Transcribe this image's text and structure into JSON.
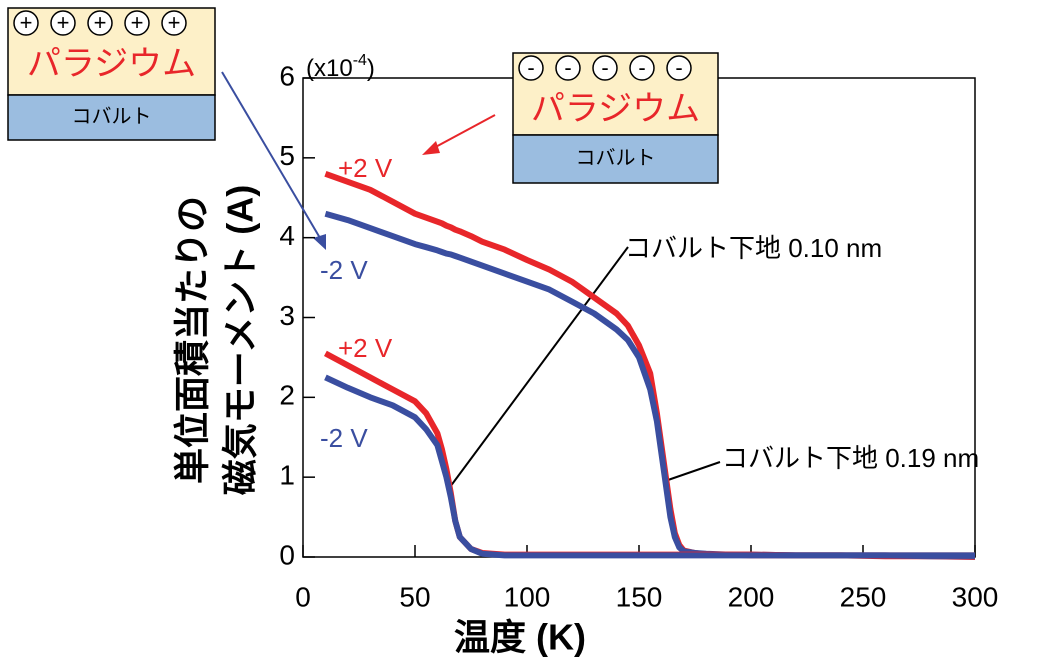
{
  "chart_data": {
    "type": "line",
    "xlabel": "温度 (K)",
    "ylabel": [
      "単位面積当たりの",
      "磁気モーメント (A)"
    ],
    "y_multiplier": {
      "base": "(x10",
      "exponent": "-4",
      "close": ")"
    },
    "xlim": [
      0,
      300
    ],
    "xticks": [
      0,
      50,
      100,
      150,
      200,
      250,
      300
    ],
    "ylim": [
      0,
      6
    ],
    "yticks": [
      0,
      1,
      2,
      3,
      4,
      5,
      6
    ],
    "x": [
      10,
      20,
      30,
      40,
      50,
      55,
      60,
      62,
      64,
      66,
      68,
      70,
      75,
      80,
      90,
      100,
      110,
      120,
      130,
      140,
      145,
      150,
      155,
      158,
      160,
      162,
      164,
      166,
      168,
      170,
      175,
      180,
      190,
      200,
      220,
      240,
      260,
      280,
      300
    ],
    "series": [
      {
        "name": "+2 V",
        "color": "#e8262a",
        "values": [
          4.8,
          4.7,
          4.6,
          4.45,
          4.3,
          4.25,
          4.2,
          4.18,
          4.15,
          4.13,
          4.1,
          4.08,
          4.02,
          3.95,
          3.85,
          3.72,
          3.6,
          3.45,
          3.25,
          3.05,
          2.9,
          2.65,
          2.3,
          1.8,
          1.4,
          1.0,
          0.6,
          0.3,
          0.15,
          0.08,
          0.05,
          0.03,
          0.03,
          0.02,
          0.02,
          0.02,
          0.01,
          0.01,
          0.0
        ]
      },
      {
        "name": "-2 V",
        "color": "#3a4ea0",
        "values": [
          4.3,
          4.22,
          4.12,
          4.02,
          3.92,
          3.88,
          3.84,
          3.82,
          3.8,
          3.79,
          3.77,
          3.75,
          3.7,
          3.65,
          3.55,
          3.45,
          3.35,
          3.2,
          3.05,
          2.85,
          2.72,
          2.5,
          2.1,
          1.7,
          1.3,
          0.9,
          0.5,
          0.25,
          0.12,
          0.07,
          0.05,
          0.04,
          0.03,
          0.03,
          0.02,
          0.02,
          0.02,
          0.01,
          0.01
        ]
      },
      {
        "name": "+2 V",
        "color": "#e8262a",
        "values": [
          2.55,
          2.4,
          2.25,
          2.1,
          1.95,
          1.8,
          1.55,
          1.35,
          1.1,
          0.8,
          0.45,
          0.25,
          0.1,
          0.05,
          0.03,
          0.03,
          0.03,
          0.03,
          0.03,
          0.03,
          0.03,
          0.03,
          0.03,
          0.03,
          0.03,
          0.03,
          0.03,
          0.03,
          0.03,
          0.03,
          0.03,
          0.03,
          0.03,
          0.03,
          0.02,
          0.02,
          0.02,
          0.02,
          0.02
        ]
      },
      {
        "name": "-2 V",
        "color": "#3a4ea0",
        "values": [
          2.25,
          2.12,
          2.0,
          1.9,
          1.75,
          1.6,
          1.4,
          1.2,
          1.0,
          0.75,
          0.45,
          0.25,
          0.1,
          0.04,
          0.02,
          0.02,
          0.02,
          0.02,
          0.02,
          0.02,
          0.02,
          0.02,
          0.02,
          0.02,
          0.02,
          0.02,
          0.02,
          0.02,
          0.02,
          0.02,
          0.02,
          0.02,
          0.02,
          0.02,
          0.02,
          0.02,
          0.02,
          0.02,
          0.02
        ]
      }
    ],
    "annotations": [
      "コバルト下地 0.10 nm",
      "コバルト下地 0.19 nm"
    ],
    "insets": [
      {
        "charge": "+",
        "layers": [
          "パラジウム",
          "コバルト"
        ]
      },
      {
        "charge": "-",
        "layers": [
          "パラジウム",
          "コバルト"
        ]
      }
    ]
  }
}
